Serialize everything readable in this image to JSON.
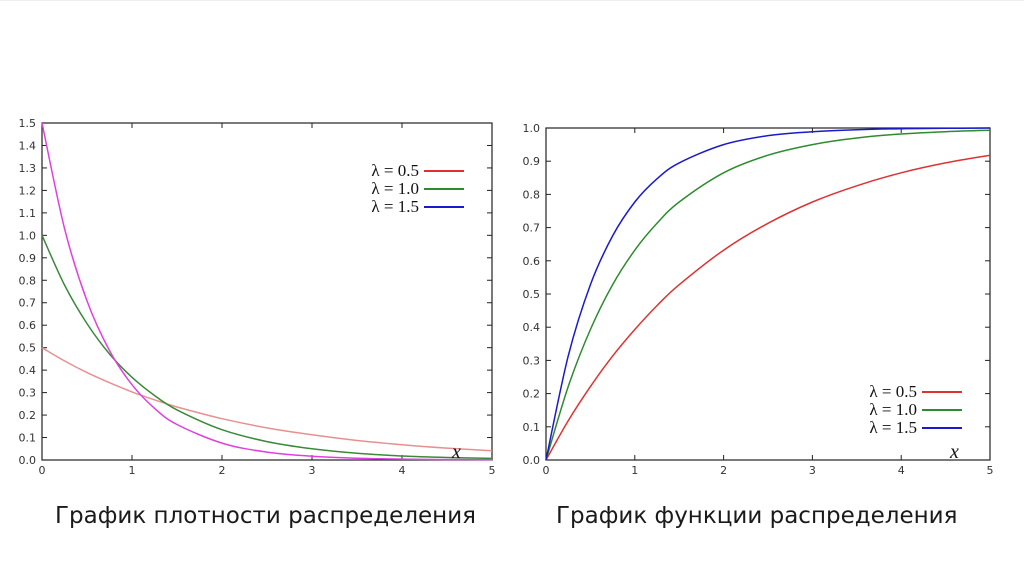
{
  "captions": {
    "pdf": "График плотности распределения",
    "cdf": "График функции распределения"
  },
  "chart_data": [
    {
      "type": "line",
      "function": "pdf",
      "xlabel": "x",
      "ylabel": "",
      "xlim": [
        0,
        5
      ],
      "ylim": [
        0,
        1.5
      ],
      "x_ticks": [
        "0",
        "1",
        "2",
        "3",
        "4",
        "5"
      ],
      "y_ticks": [
        "0.0",
        "0.1",
        "0.2",
        "0.3",
        "0.4",
        "0.5",
        "0.6",
        "0.7",
        "0.8",
        "0.9",
        "1.0",
        "1.1",
        "1.2",
        "1.3",
        "1.4",
        "1.5"
      ],
      "x": [
        0,
        0.25,
        0.5,
        0.75,
        1,
        1.25,
        1.5,
        2,
        2.5,
        3,
        3.5,
        4,
        4.5,
        5
      ],
      "legend": {
        "position": "top-right"
      },
      "series": [
        {
          "name": "λ = 0.5",
          "legend_color": "#e03030",
          "line_color": "#e89090",
          "values": [
            0.5,
            0.441,
            0.389,
            0.344,
            0.303,
            0.268,
            0.236,
            0.184,
            0.143,
            0.112,
            0.087,
            0.068,
            0.053,
            0.041
          ]
        },
        {
          "name": "λ = 1.0",
          "legend_color": "#2e8b2e",
          "line_color": "#3a8a3a",
          "values": [
            1.0,
            0.779,
            0.607,
            0.472,
            0.368,
            0.287,
            0.223,
            0.135,
            0.082,
            0.05,
            0.03,
            0.018,
            0.011,
            0.007
          ]
        },
        {
          "name": "λ = 1.5",
          "legend_color": "#1a1acc",
          "line_color": "#e040e0",
          "values": [
            1.5,
            1.031,
            0.708,
            0.487,
            0.335,
            0.23,
            0.158,
            0.075,
            0.035,
            0.017,
            0.008,
            0.004,
            0.002,
            0.001
          ]
        }
      ]
    },
    {
      "type": "line",
      "function": "cdf",
      "xlabel": "x",
      "ylabel": "",
      "xlim": [
        0,
        5
      ],
      "ylim": [
        0,
        1.0
      ],
      "x_ticks": [
        "0",
        "1",
        "2",
        "3",
        "4",
        "5"
      ],
      "y_ticks": [
        "0.0",
        "0.1",
        "0.2",
        "0.3",
        "0.4",
        "0.5",
        "0.6",
        "0.7",
        "0.8",
        "0.9",
        "1.0"
      ],
      "x": [
        0,
        0.25,
        0.5,
        0.75,
        1,
        1.25,
        1.5,
        2,
        2.5,
        3,
        3.5,
        4,
        4.5,
        5
      ],
      "legend": {
        "position": "bottom-right"
      },
      "series": [
        {
          "name": "λ = 0.5",
          "legend_color": "#e03030",
          "line_color": "#dd3333",
          "values": [
            0,
            0.118,
            0.221,
            0.313,
            0.393,
            0.465,
            0.528,
            0.632,
            0.713,
            0.777,
            0.826,
            0.865,
            0.895,
            0.918
          ]
        },
        {
          "name": "λ = 1.0",
          "legend_color": "#2e8b2e",
          "line_color": "#2e8b2e",
          "values": [
            0,
            0.221,
            0.393,
            0.528,
            0.632,
            0.713,
            0.777,
            0.865,
            0.918,
            0.95,
            0.97,
            0.982,
            0.989,
            0.993
          ]
        },
        {
          "name": "λ = 1.5",
          "legend_color": "#1a1acc",
          "line_color": "#1a1acc",
          "values": [
            0,
            0.313,
            0.528,
            0.675,
            0.777,
            0.847,
            0.895,
            0.95,
            0.977,
            0.989,
            0.995,
            0.998,
            0.999,
            1.0
          ]
        }
      ]
    }
  ]
}
